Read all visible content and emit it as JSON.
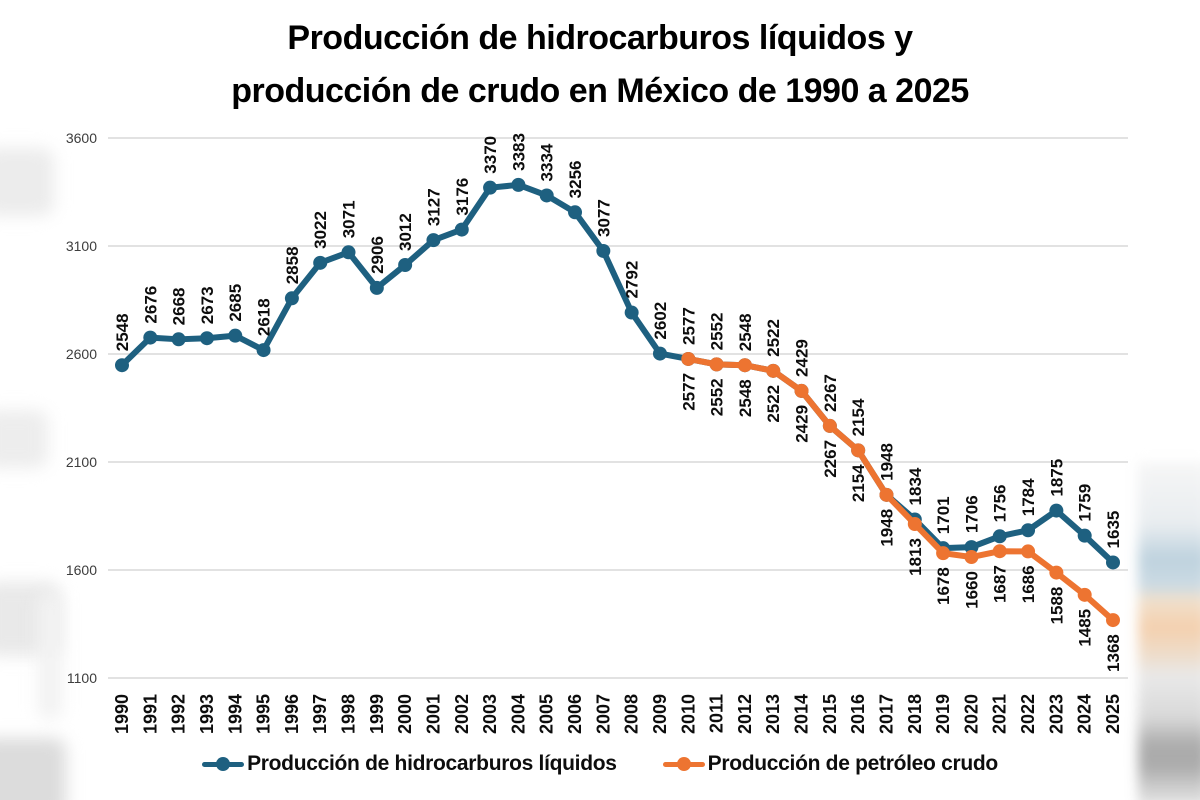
{
  "header": {
    "title_line1": "Producción de hidrocarburos líquidos y",
    "title_line2": "producción de crudo en México de 1990 a 2025"
  },
  "chart_data": {
    "type": "line",
    "title": "Producción de hidrocarburos líquidos y producción de crudo en México de 1990 a 2025",
    "x": [
      1990,
      1991,
      1992,
      1993,
      1994,
      1995,
      1996,
      1997,
      1998,
      1999,
      2000,
      2001,
      2002,
      2003,
      2004,
      2005,
      2006,
      2007,
      2008,
      2009,
      2010,
      2011,
      2012,
      2013,
      2014,
      2015,
      2016,
      2017,
      2018,
      2019,
      2020,
      2021,
      2022,
      2023,
      2024,
      2025
    ],
    "series": [
      {
        "name": "Producción de hidrocarburos líquidos",
        "color": "#1E6080",
        "label_side": "above",
        "start_index": 0,
        "values": [
          2548,
          2676,
          2668,
          2673,
          2685,
          2618,
          2858,
          3022,
          3071,
          2906,
          3012,
          3127,
          3176,
          3370,
          3383,
          3334,
          3256,
          3077,
          2792,
          2602,
          2577,
          2552,
          2548,
          2522,
          2429,
          2267,
          2154,
          1948,
          1834,
          1701,
          1706,
          1756,
          1784,
          1875,
          1759,
          1635
        ]
      },
      {
        "name": "Producción de petróleo crudo",
        "color": "#ED7431",
        "label_side": "below",
        "start_index": 20,
        "values": [
          2577,
          2552,
          2548,
          2522,
          2429,
          2267,
          2154,
          1948,
          1813,
          1678,
          1660,
          1687,
          1686,
          1588,
          1485,
          1368
        ]
      }
    ],
    "ylim": [
      1100,
      3600
    ],
    "yticks": [
      3600,
      3100,
      2600,
      2100,
      1600,
      1100
    ],
    "grid": true,
    "grid_color": "#d9d9d9",
    "data_labels": true,
    "legend_position": "bottom"
  }
}
